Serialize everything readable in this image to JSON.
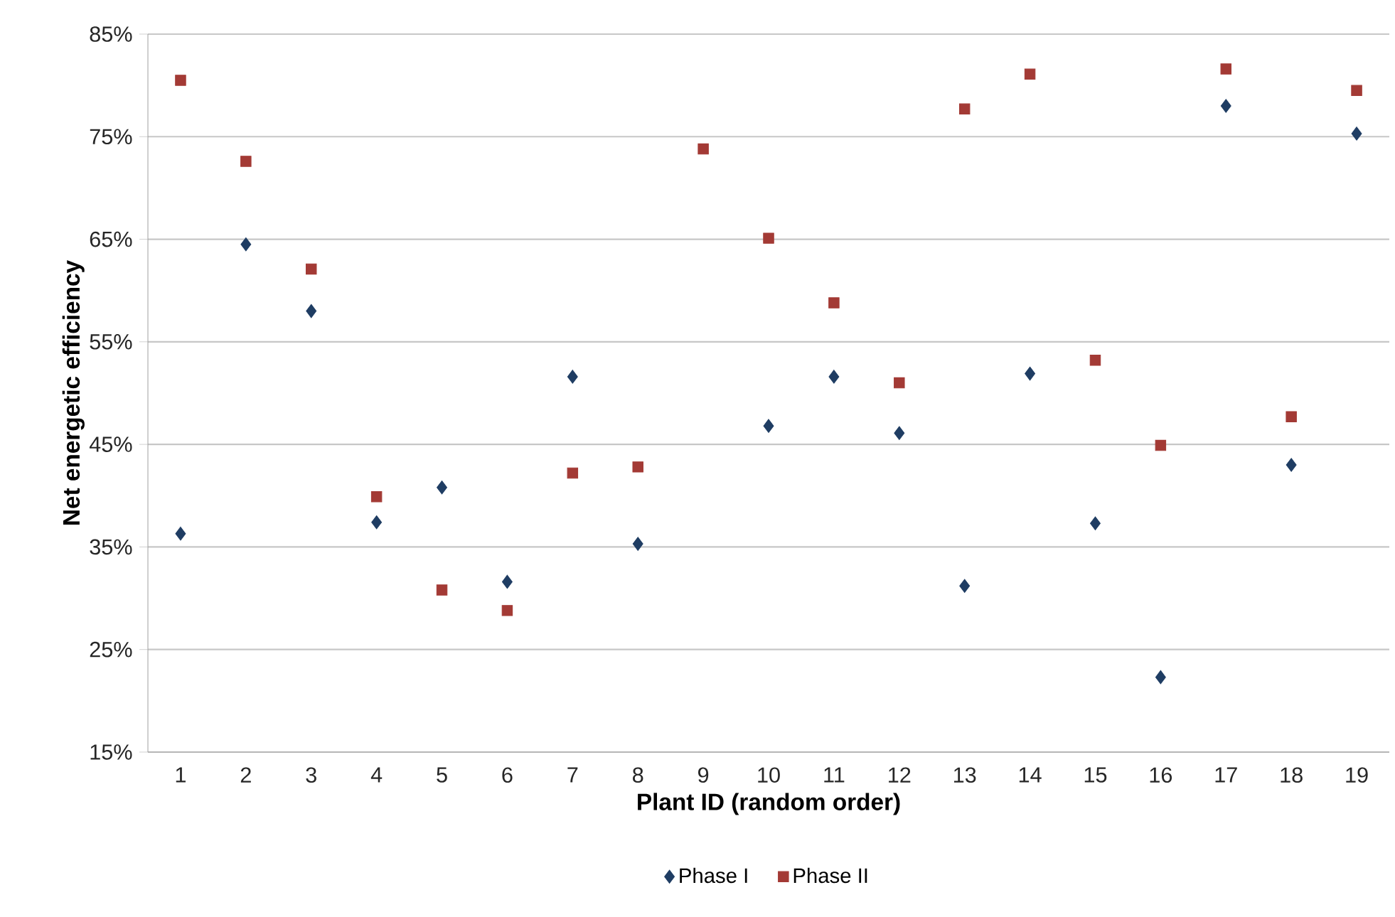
{
  "chart_data": {
    "type": "scatter",
    "xlabel": "Plant ID (random order)",
    "ylabel": "Net energetic efficiency",
    "categories": [
      "1",
      "2",
      "3",
      "4",
      "5",
      "6",
      "7",
      "8",
      "9",
      "10",
      "11",
      "12",
      "13",
      "14",
      "15",
      "16",
      "17",
      "18",
      "19"
    ],
    "series": [
      {
        "name": "Phase I",
        "color": "#1f3d63",
        "marker": "diamond",
        "values": [
          36.3,
          64.5,
          58.0,
          37.4,
          40.8,
          31.6,
          51.6,
          35.3,
          null,
          46.8,
          51.6,
          46.1,
          31.2,
          51.9,
          37.3,
          22.3,
          78.0,
          43.0,
          75.3
        ]
      },
      {
        "name": "Phase II",
        "color": "#a33a35",
        "marker": "square",
        "values": [
          80.5,
          72.6,
          62.1,
          39.9,
          30.8,
          28.8,
          42.2,
          42.8,
          73.8,
          65.1,
          58.8,
          51.0,
          77.7,
          81.1,
          53.2,
          44.9,
          81.6,
          47.7,
          79.5
        ]
      }
    ],
    "ylim": [
      15,
      85
    ],
    "yticks": [
      {
        "value": 15,
        "label": "15%"
      },
      {
        "value": 25,
        "label": "25%"
      },
      {
        "value": 35,
        "label": "35%"
      },
      {
        "value": 45,
        "label": "45%"
      },
      {
        "value": 55,
        "label": "55%"
      },
      {
        "value": 65,
        "label": "65%"
      },
      {
        "value": 75,
        "label": "75%"
      },
      {
        "value": 85,
        "label": "85%"
      }
    ],
    "grid": "y",
    "legend": "bottom"
  }
}
